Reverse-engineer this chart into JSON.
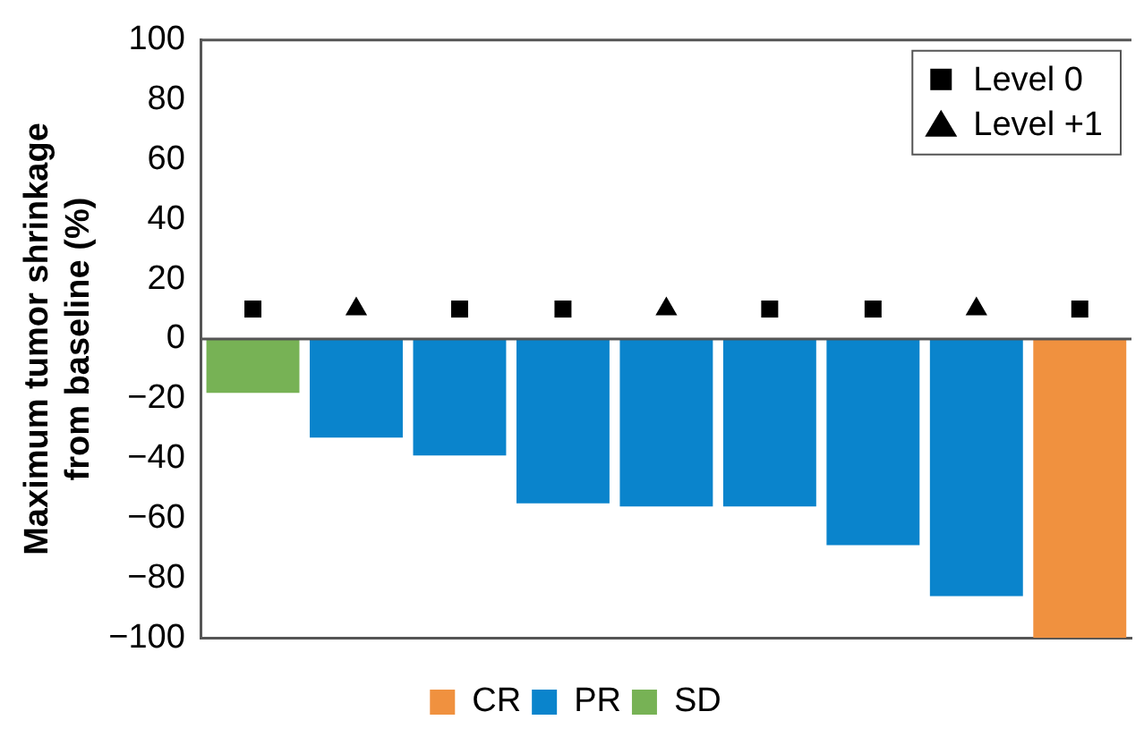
{
  "chart_data": {
    "type": "bar",
    "ylabel": "Maximum tumor shrinkage from baseline (%)",
    "categories": [
      null,
      null,
      null,
      null,
      null,
      null,
      null,
      null,
      null
    ],
    "series": [
      {
        "name": "CR",
        "color": "#f0913f",
        "values": [
          null,
          null,
          null,
          null,
          null,
          null,
          null,
          null,
          -100
        ]
      },
      {
        "name": "PR",
        "color": "#0a84cc",
        "values": [
          null,
          -33,
          -39,
          -55,
          -56,
          -56,
          -69,
          -86,
          null
        ]
      },
      {
        "name": "SD",
        "color": "#77b255",
        "values": [
          -18,
          null,
          null,
          null,
          null,
          null,
          null,
          null,
          null
        ]
      },
      {
        "name": "Level 0",
        "type": "scatter",
        "marker": "square",
        "color": "#000000",
        "values": [
          10,
          null,
          10,
          10,
          null,
          10,
          10,
          null,
          10
        ]
      },
      {
        "name": "Level +1",
        "type": "scatter",
        "marker": "triangle",
        "color": "#000000",
        "values": [
          null,
          10,
          null,
          null,
          10,
          null,
          null,
          10,
          null
        ]
      }
    ],
    "ylim": [
      -100,
      100
    ],
    "yticks": [
      -100,
      -80,
      -60,
      -40,
      -20,
      0,
      20,
      40,
      60,
      80,
      100
    ],
    "ref_lines": [
      {
        "axis": "y",
        "value": 0,
        "color": "#555555"
      }
    ],
    "grid": false,
    "legend": "bottom"
  }
}
